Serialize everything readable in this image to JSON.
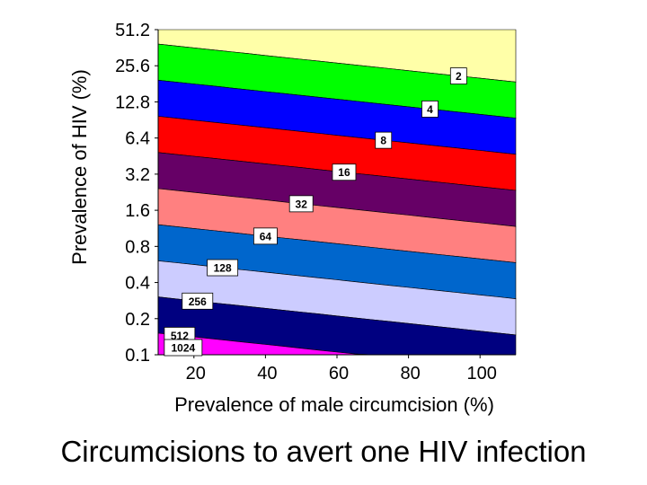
{
  "chart_data": {
    "type": "contour",
    "title": "Circumcisions to avert one HIV infection",
    "xlabel": "Prevalence of male circumcision (%)",
    "ylabel": "Prevalence of HIV (%)",
    "xlim": [
      10,
      110
    ],
    "ylim": [
      0.1,
      51.2
    ],
    "yscale": "log2",
    "x_ticks": [
      "20",
      "40",
      "60",
      "80",
      "100"
    ],
    "x_tick_values": [
      20,
      40,
      60,
      80,
      100
    ],
    "y_ticks": [
      "0.1",
      "0.2",
      "0.4",
      "0.8",
      "1.6",
      "3.2",
      "6.4",
      "12.8",
      "25.6",
      "51.2"
    ],
    "y_tick_values": [
      0.1,
      0.2,
      0.4,
      0.8,
      1.6,
      3.2,
      6.4,
      12.8,
      25.6,
      51.2
    ],
    "contour_levels": [
      "2",
      "4",
      "8",
      "16",
      "32",
      "64",
      "128",
      "256",
      "512",
      "1024"
    ],
    "contour_label_x": [
      94,
      86,
      73,
      62,
      50,
      40,
      28,
      21,
      16,
      17
    ],
    "band_colors": [
      "#FFFFA8",
      "#00FF00",
      "#0000FF",
      "#FF0000",
      "#660066",
      "#FF8080",
      "#0066CC",
      "#CCCCFF",
      "#000080",
      "#FF00FF",
      "#FFFF00"
    ]
  }
}
